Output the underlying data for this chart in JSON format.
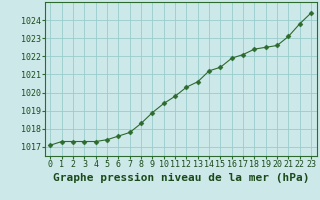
{
  "x": [
    0,
    1,
    2,
    3,
    4,
    5,
    6,
    7,
    8,
    9,
    10,
    11,
    12,
    13,
    14,
    15,
    16,
    17,
    18,
    19,
    20,
    21,
    22,
    23
  ],
  "y": [
    1017.1,
    1017.3,
    1017.3,
    1017.3,
    1017.3,
    1017.4,
    1017.6,
    1017.8,
    1018.3,
    1018.9,
    1019.4,
    1019.8,
    1020.3,
    1020.6,
    1021.2,
    1021.4,
    1021.9,
    1022.1,
    1022.4,
    1022.5,
    1022.6,
    1023.1,
    1023.8,
    1024.4
  ],
  "line_color": "#2d6a2d",
  "marker": "D",
  "marker_size": 2.5,
  "bg_color": "#cce8e8",
  "grid_color": "#99cccc",
  "xlabel": "Graphe pression niveau de la mer (hPa)",
  "xlabel_color": "#1a4a1a",
  "xlabel_fontsize": 8,
  "ylim": [
    1016.5,
    1025.0
  ],
  "xlim": [
    -0.5,
    23.5
  ],
  "yticks": [
    1017,
    1018,
    1019,
    1020,
    1021,
    1022,
    1023,
    1024
  ],
  "xtick_labels": [
    "0",
    "1",
    "2",
    "3",
    "4",
    "5",
    "6",
    "7",
    "8",
    "9",
    "10",
    "11",
    "12",
    "13",
    "14",
    "15",
    "16",
    "17",
    "18",
    "19",
    "20",
    "21",
    "22",
    "23"
  ],
  "tick_color": "#1a4a1a",
  "tick_fontsize": 6,
  "spine_color": "#2d6a2d"
}
